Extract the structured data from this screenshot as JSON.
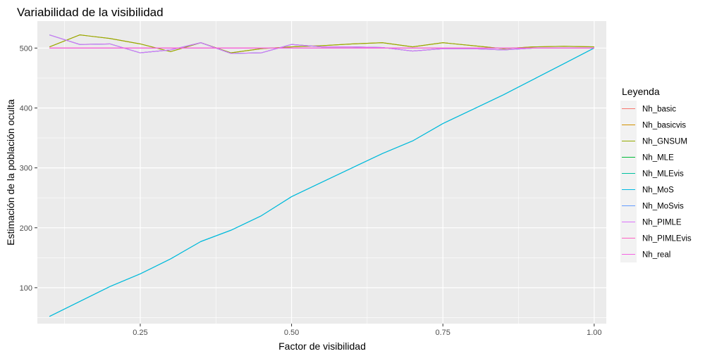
{
  "chart_data": {
    "type": "line",
    "title": "Variabilidad de la visibilidad",
    "xlabel": "Factor de visibilidad",
    "ylabel": "Estimación de la población oculta",
    "xlim": [
      0.08,
      1.02
    ],
    "ylim": [
      40,
      545
    ],
    "xticks": [
      0.25,
      0.5,
      0.75,
      1.0
    ],
    "xtick_labels": [
      "0.25",
      "0.50",
      "0.75",
      "1.00"
    ],
    "yticks": [
      100,
      200,
      300,
      400,
      500
    ],
    "ytick_labels": [
      "100",
      "200",
      "300",
      "400",
      "500"
    ],
    "grid": true,
    "legend_position": "right",
    "legend_title": "Leyenda",
    "x": [
      0.1,
      0.15,
      0.2,
      0.25,
      0.3,
      0.35,
      0.4,
      0.45,
      0.5,
      0.55,
      0.6,
      0.65,
      0.7,
      0.75,
      0.8,
      0.85,
      0.9,
      0.95,
      1.0
    ],
    "series": [
      {
        "name": "Nh_basic",
        "color": "#F8766D",
        "values": [
          500,
          500,
          500,
          500,
          500,
          500,
          500,
          500,
          500,
          500,
          500,
          500,
          500,
          500,
          500,
          500,
          500,
          500,
          500
        ]
      },
      {
        "name": "Nh_basicvis",
        "color": "#D39200",
        "values": [
          502,
          522,
          516,
          507,
          494,
          509,
          492,
          499,
          502,
          504,
          507,
          509,
          502,
          509,
          504,
          499,
          502,
          503,
          502
        ]
      },
      {
        "name": "Nh_GNSUM",
        "color": "#93AA00",
        "values": [
          502,
          522,
          516,
          507,
          494,
          509,
          492,
          499,
          502,
          504,
          507,
          509,
          502,
          509,
          504,
          499,
          502,
          503,
          502
        ]
      },
      {
        "name": "Nh_MLE",
        "color": "#00BA38",
        "values": [
          522,
          506,
          507,
          492,
          497,
          509,
          491,
          492,
          506,
          502,
          502,
          501,
          495,
          499,
          499,
          497,
          500,
          500,
          500
        ]
      },
      {
        "name": "Nh_MLEvis",
        "color": "#00C19F",
        "values": [
          52,
          77,
          102,
          123,
          148,
          177,
          196,
          220,
          252,
          276,
          300,
          324,
          345,
          374,
          398,
          422,
          448,
          474,
          500
        ]
      },
      {
        "name": "Nh_MoS",
        "color": "#00B9E3",
        "values": [
          52,
          77,
          102,
          123,
          148,
          177,
          196,
          220,
          252,
          276,
          300,
          324,
          345,
          374,
          398,
          422,
          448,
          474,
          500
        ]
      },
      {
        "name": "Nh_MoSvis",
        "color": "#619CFF",
        "values": [
          522,
          506,
          507,
          492,
          497,
          509,
          491,
          492,
          506,
          502,
          502,
          501,
          495,
          499,
          499,
          497,
          500,
          500,
          500
        ]
      },
      {
        "name": "Nh_PIMLE",
        "color": "#DB72FB",
        "values": [
          522,
          506,
          507,
          492,
          497,
          509,
          491,
          492,
          506,
          502,
          502,
          501,
          495,
          499,
          499,
          497,
          500,
          500,
          500
        ]
      },
      {
        "name": "Nh_PIMLEvis",
        "color": "#FF61C3",
        "values": [
          500,
          500,
          500,
          500,
          500,
          500,
          500,
          500,
          500,
          500,
          500,
          500,
          500,
          500,
          500,
          500,
          500,
          500,
          500
        ]
      },
      {
        "name": "Nh_real",
        "color": "#F564E3",
        "values": [
          500,
          500,
          500,
          500,
          500,
          500,
          500,
          500,
          500,
          500,
          500,
          500,
          500,
          500,
          500,
          500,
          500,
          500,
          500
        ]
      }
    ]
  }
}
